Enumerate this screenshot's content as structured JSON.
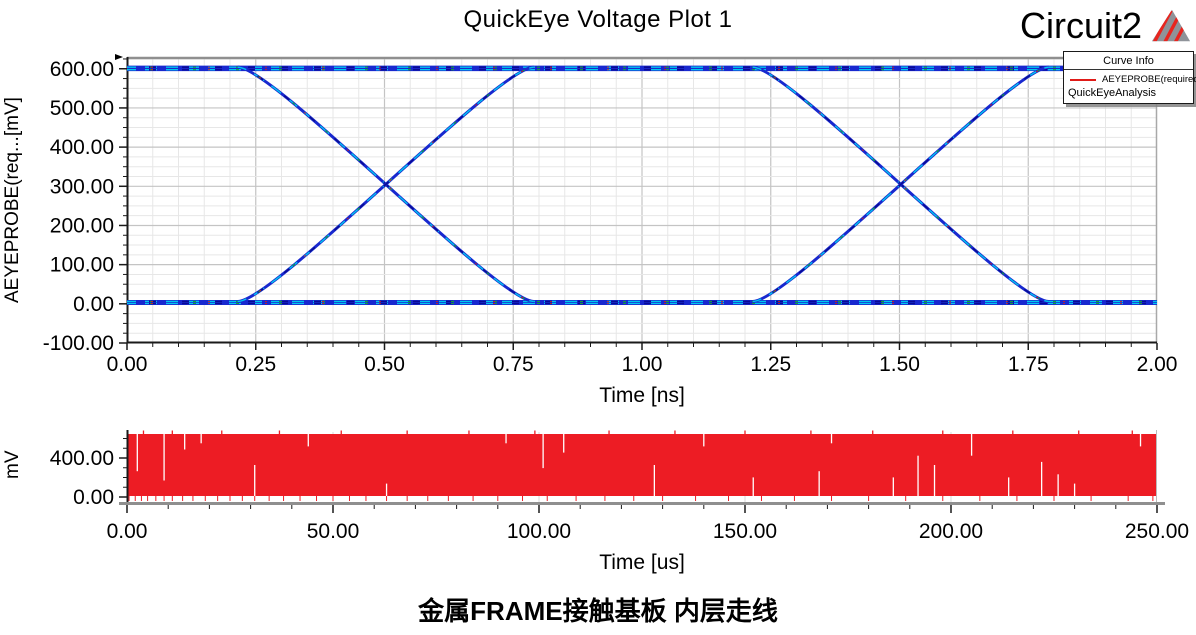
{
  "header": {
    "title": "QuickEye Voltage Plot 1",
    "circuit_label": "Circuit2",
    "logo": "ansys-triangle-logo",
    "logo_colors": {
      "gray": "#8f9399",
      "red": "#e8251f"
    }
  },
  "legend": {
    "title": "Curve Info",
    "entry_label": "AEYEPROBE(required)",
    "entry_color": "#e01b18",
    "analysis_label": "QuickEyeAnalysis"
  },
  "caption": "金属FRAME接触基板 内层走线",
  "chart_data": [
    {
      "type": "line",
      "subtype": "eye-diagram",
      "title": "QuickEye Voltage Plot 1",
      "xlabel": "Time [ns]",
      "ylabel": "AEYEPROBE(req...[mV]",
      "xlim": [
        0,
        2
      ],
      "ylim": [
        -100,
        630
      ],
      "xticks": [
        0,
        0.25,
        0.5,
        0.75,
        1.0,
        1.25,
        1.5,
        1.75,
        2.0
      ],
      "yticks": [
        -100,
        0,
        100,
        200,
        300,
        400,
        500,
        600
      ],
      "x_minor_step": 0.05,
      "y_minor_step": 25,
      "grid": true,
      "legend_position": "top-right",
      "series": [
        {
          "name": "AEYEPROBE(required)",
          "analysis": "QuickEyeAnalysis",
          "trace_colors": [
            "#1828cf",
            "#00c6ef",
            "#0a0a96",
            "#13a03c",
            "#cf1f1f"
          ]
        }
      ],
      "eye": {
        "high_mv": 604,
        "low_mv": 6,
        "crossing_mv": 300,
        "crossing_times_ns": [
          0.5,
          1.5
        ],
        "unit_interval_ns": 1.0,
        "transitions": [
          {
            "start": 0.215,
            "end": 0.79
          },
          {
            "start": 1.215,
            "end": 1.79
          }
        ]
      }
    },
    {
      "type": "area",
      "subtype": "bitstream-strip",
      "xlabel": "Time [us]",
      "ylabel": "mV",
      "xlim": [
        0,
        250
      ],
      "ylim": [
        -80,
        660
      ],
      "xticks": [
        0,
        50,
        100,
        150,
        200,
        250
      ],
      "yticks": [
        0,
        400
      ],
      "x_minor_step": 10,
      "y_minor_step": 100,
      "fill_color": "#ed1c24",
      "signal": {
        "low_mv": 0,
        "high_mv": 630,
        "description": "dense 0/600 mV bitstream rendered as solid red fill"
      },
      "white_gaps": [
        {
          "x": 2.5,
          "from": "top",
          "len": 0.6
        },
        {
          "x": 9,
          "from": "top",
          "len": 0.75
        },
        {
          "x": 14,
          "from": "top",
          "len": 0.25
        },
        {
          "x": 18,
          "from": "top",
          "len": 0.15
        },
        {
          "x": 31,
          "from": "bottom",
          "len": 0.5
        },
        {
          "x": 44,
          "from": "top",
          "len": 0.2
        },
        {
          "x": 63,
          "from": "bottom",
          "len": 0.2
        },
        {
          "x": 92,
          "from": "top",
          "len": 0.15
        },
        {
          "x": 101,
          "from": "top",
          "len": 0.55
        },
        {
          "x": 106,
          "from": "top",
          "len": 0.3
        },
        {
          "x": 128,
          "from": "bottom",
          "len": 0.5
        },
        {
          "x": 140,
          "from": "top",
          "len": 0.2
        },
        {
          "x": 152,
          "from": "bottom",
          "len": 0.3
        },
        {
          "x": 168,
          "from": "bottom",
          "len": 0.4
        },
        {
          "x": 171,
          "from": "top",
          "len": 0.15
        },
        {
          "x": 186,
          "from": "bottom",
          "len": 0.3
        },
        {
          "x": 192,
          "from": "bottom",
          "len": 0.65
        },
        {
          "x": 196,
          "from": "bottom",
          "len": 0.5
        },
        {
          "x": 205,
          "from": "top",
          "len": 0.35
        },
        {
          "x": 214,
          "from": "bottom",
          "len": 0.3
        },
        {
          "x": 222,
          "from": "bottom",
          "len": 0.55
        },
        {
          "x": 226,
          "from": "bottom",
          "len": 0.35
        },
        {
          "x": 230,
          "from": "bottom",
          "len": 0.2
        },
        {
          "x": 246,
          "from": "top",
          "len": 0.2
        }
      ],
      "top_spikes": [
        4,
        11,
        23,
        37,
        52,
        68,
        83,
        99,
        117,
        133,
        150,
        166,
        181,
        198,
        215,
        231,
        244
      ],
      "baseline_ticks_us": [
        0.5,
        2,
        3.5,
        5,
        7,
        9,
        11,
        13.5,
        16,
        19,
        22,
        25,
        28,
        31,
        34.5,
        38,
        42,
        46,
        50,
        54,
        58,
        63,
        68,
        73,
        78,
        84,
        90,
        96,
        102,
        109,
        116,
        123,
        130,
        138,
        146,
        154,
        162,
        171,
        180,
        189,
        198,
        207,
        216,
        225,
        234,
        243,
        249
      ]
    }
  ],
  "colors": {
    "grid_minor": "#e7e7e7",
    "grid_major": "#c4c4c4",
    "axis": "#1a1a1a",
    "border_gray": "#8f8f8f",
    "red_fill": "#ed1c24"
  }
}
